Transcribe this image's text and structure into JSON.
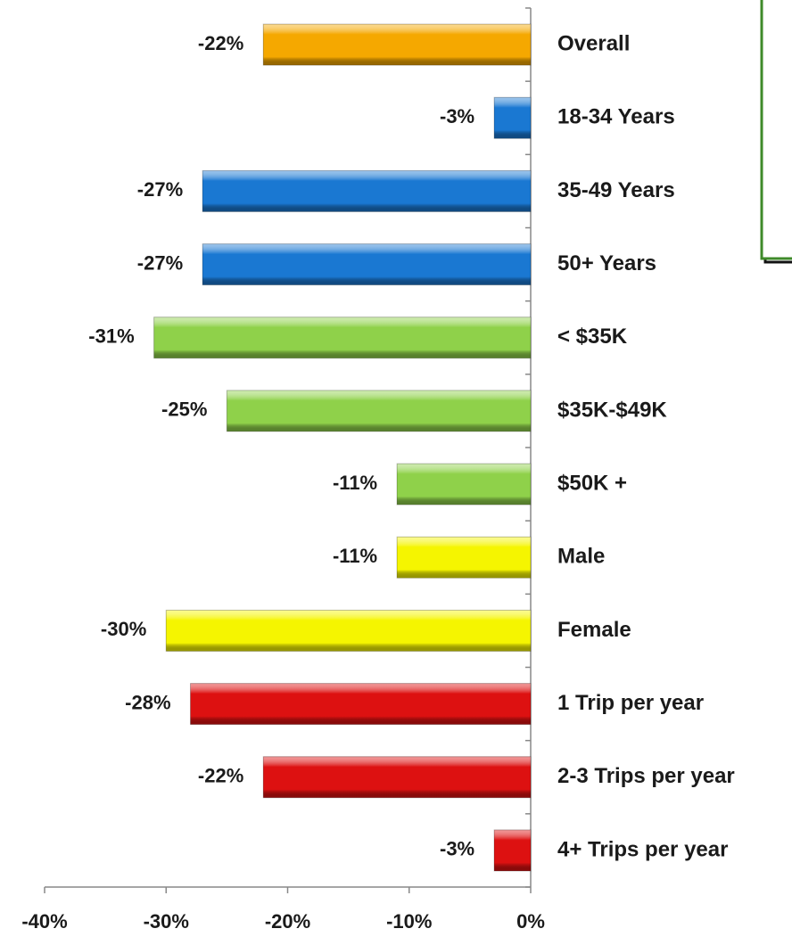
{
  "chart_data": {
    "type": "barh",
    "categories": [
      "Overall",
      "18-34 Years",
      "35-49 Years",
      "50+ Years",
      "< $35K",
      "$35K-$49K",
      "$50K +",
      "Male",
      "Female",
      "1 Trip per year",
      "2-3 Trips per year",
      "4+ Trips per year"
    ],
    "values": [
      -22,
      -3,
      -27,
      -27,
      -31,
      -25,
      -11,
      -11,
      -30,
      -28,
      -22,
      -3
    ],
    "value_labels": [
      "-22%",
      "-3%",
      "-27%",
      "-27%",
      "-31%",
      "-25%",
      "-11%",
      "-11%",
      "-30%",
      "-28%",
      "-22%",
      "-3%"
    ],
    "colors": [
      "#f5a800",
      "#1a78d2",
      "#1a78d2",
      "#1a78d2",
      "#8fd14a",
      "#8fd14a",
      "#8fd14a",
      "#f5f500",
      "#f5f500",
      "#dd1111",
      "#dd1111",
      "#dd1111"
    ],
    "xlim": [
      -40,
      0
    ],
    "xticks": [
      {
        "value": -40,
        "label": "-40%"
      },
      {
        "value": -30,
        "label": "-30%"
      },
      {
        "value": -20,
        "label": "-20%"
      },
      {
        "value": -10,
        "label": "-10%"
      },
      {
        "value": 0,
        "label": "0%"
      }
    ]
  }
}
